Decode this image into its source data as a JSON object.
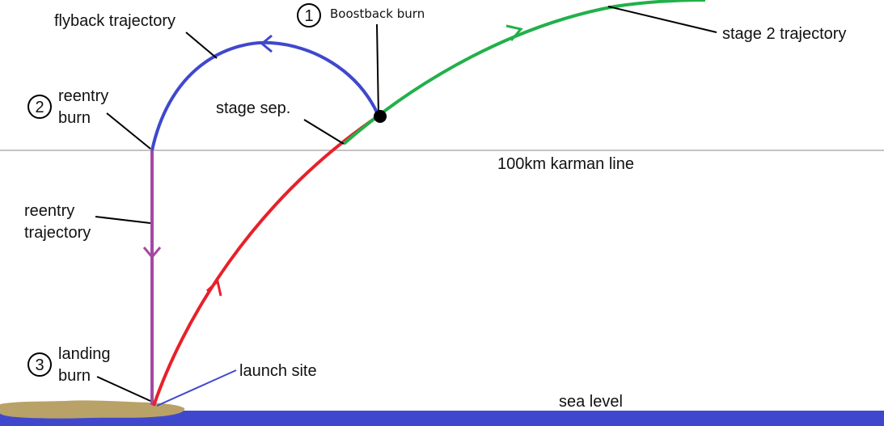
{
  "labels": {
    "flyback_trajectory": "flyback trajectory",
    "boostback_number": "1",
    "boostback_burn": "Boostback burn",
    "stage2_trajectory": "stage 2 trajectory",
    "reentry_burn_number": "2",
    "reentry_burn_line1": "reentry",
    "reentry_burn_line2": "burn",
    "stage_sep": "stage sep.",
    "karman_line": "100km karman line",
    "reentry_trajectory_line1": "reentry",
    "reentry_trajectory_line2": "trajectory",
    "landing_burn_number": "3",
    "landing_burn_line1": "landing",
    "landing_burn_line2": "burn",
    "launch_site": "launch site",
    "sea_level": "sea level"
  },
  "colors": {
    "ascent": "#e8202a",
    "stage2": "#22b04a",
    "flyback": "#3f48cc",
    "reentry": "#a349a4",
    "karman_line": "#c3c3c3",
    "sea": "#3f48cc",
    "land": "#b9a268",
    "leader": "#000000",
    "launch_leader": "#3f48cc"
  }
}
